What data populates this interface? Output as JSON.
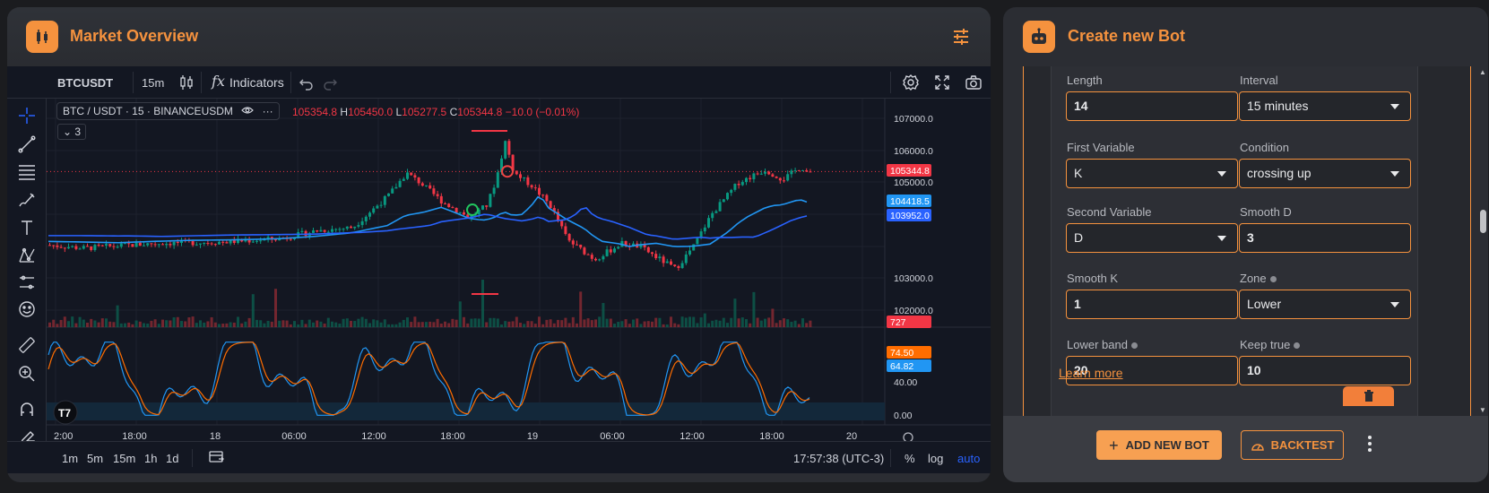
{
  "market": {
    "title": "Market Overview",
    "toolbar": {
      "symbol": "BTCUSDT",
      "timeframe": "15m",
      "indicators_label": "Indicators"
    },
    "legend": {
      "base": "BTC",
      "sep": "/",
      "quote": "USDT",
      "dot1": "·",
      "interval": "15",
      "dot2": "·",
      "exchange": "BINANCEUSDM",
      "o": "105354.8",
      "h_label": "H",
      "h": "105450.0",
      "l_label": "L",
      "l": "105277.5",
      "c_label": "C",
      "c": "105344.8",
      "change": "−10.0 (−0.01%)",
      "indicator_count": "3"
    },
    "price_axis": [
      "107000.0",
      "106000.0",
      "105000.0",
      "103000.0",
      "102000.0"
    ],
    "price_tags": {
      "last": "105344.8",
      "ma_fast": "104418.5",
      "ma_slow": "103952.0",
      "volume": "727"
    },
    "osc_axis": [
      "40.00",
      "0.00"
    ],
    "osc_tags": {
      "k": "74.50",
      "d": "64.82"
    },
    "time_axis": [
      "2:00",
      "18:00",
      "18",
      "06:00",
      "12:00",
      "18:00",
      "19",
      "06:00",
      "12:00",
      "18:00",
      "20"
    ],
    "bottom_bar": {
      "ranges": [
        "1m",
        "5m",
        "15m",
        "1h",
        "1d"
      ],
      "clock": "17:57:38 (UTC-3)",
      "percent": "%",
      "log": "log",
      "auto": "auto"
    },
    "colors": {
      "up": "#089981",
      "down": "#f23645",
      "ma_fast": "#2196f3",
      "ma_slow": "#2962ff",
      "k_line": "#2196f3",
      "d_line": "#ff6d00"
    }
  },
  "bot": {
    "title": "Create new Bot",
    "fields": {
      "length": {
        "label": "Length",
        "value": "14"
      },
      "interval": {
        "label": "Interval",
        "value": "15 minutes"
      },
      "first_variable": {
        "label": "First Variable",
        "value": "K"
      },
      "condition": {
        "label": "Condition",
        "value": "crossing up"
      },
      "second_variable": {
        "label": "Second Variable",
        "value": "D"
      },
      "smooth_d": {
        "label": "Smooth D",
        "value": "3"
      },
      "smooth_k": {
        "label": "Smooth K",
        "value": "1"
      },
      "zone": {
        "label": "Zone",
        "value": "Lower"
      },
      "lower_band": {
        "label": "Lower band",
        "value": "20"
      },
      "keep_true": {
        "label": "Keep true",
        "value": "10"
      }
    },
    "learn_more": "Learn more",
    "add_button": "ADD NEW BOT",
    "backtest_button": "BACKTEST",
    "accent": "#f5923e"
  }
}
